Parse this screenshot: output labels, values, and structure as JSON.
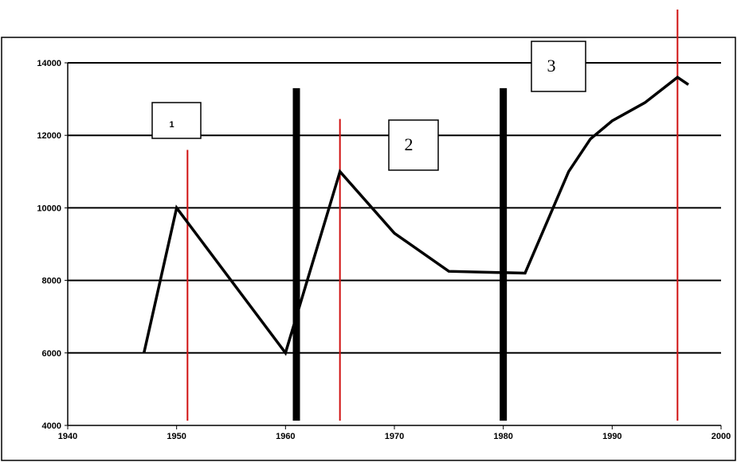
{
  "chart_data": {
    "type": "line",
    "title": "",
    "xlabel": "",
    "ylabel": "",
    "xlim": [
      1940,
      2000
    ],
    "ylim": [
      4000,
      14000
    ],
    "x_ticks": [
      1940,
      1950,
      1960,
      1970,
      1980,
      1990,
      2000
    ],
    "y_ticks": [
      4000,
      6000,
      8000,
      10000,
      12000,
      14000
    ],
    "grid": "horizontal",
    "series": [
      {
        "color": "#000000",
        "points": [
          [
            1947,
            6000
          ],
          [
            1950,
            10000
          ],
          [
            1960,
            6000
          ],
          [
            1965,
            11000
          ],
          [
            1970,
            9300
          ],
          [
            1975,
            8250
          ],
          [
            1982,
            8200
          ],
          [
            1986,
            11000
          ],
          [
            1988,
            11900
          ],
          [
            1990,
            12400
          ],
          [
            1993,
            12900
          ],
          [
            1996,
            13600
          ],
          [
            1997,
            13400
          ]
        ]
      }
    ],
    "period_dividers": [
      {
        "x": 1961,
        "color": "#000000"
      },
      {
        "x": 1980,
        "color": "#000000"
      }
    ],
    "red_markers": [
      {
        "x": 1951,
        "color": "#d01010"
      },
      {
        "x": 1965,
        "color": "#d01010"
      },
      {
        "x": 1996,
        "color": "#d01010"
      }
    ],
    "annotations": [
      {
        "label": "1",
        "x": 1951,
        "y": 12000
      },
      {
        "label": "2",
        "x": 1965,
        "y": 11800
      },
      {
        "label": "3",
        "x": 1980,
        "y": 14000
      }
    ]
  }
}
